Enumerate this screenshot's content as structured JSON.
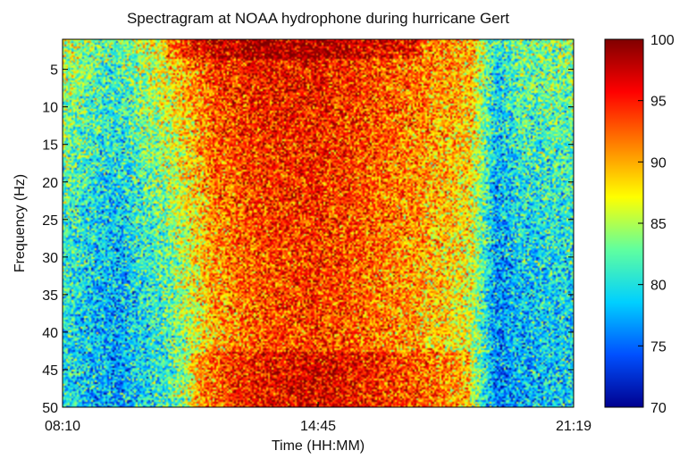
{
  "chart_data": {
    "type": "heatmap",
    "title": "Spectragram at NOAA hydrophone during hurricane Gert",
    "xlabel": "Time (HH:MM)",
    "ylabel": "Frequency (Hz)",
    "x_tick_labels": [
      "08:10",
      "14:45",
      "21:19"
    ],
    "x_tick_positions": [
      0,
      0.5,
      1
    ],
    "y_ticks": [
      5,
      10,
      15,
      20,
      25,
      30,
      35,
      40,
      45,
      50
    ],
    "ylim": [
      1,
      50
    ],
    "y_reversed": true,
    "colorbar": {
      "ticks": [
        70,
        75,
        80,
        85,
        90,
        95,
        100
      ],
      "range": [
        70,
        100
      ],
      "colormap": "jet",
      "colors": [
        "#00008f",
        "#0050ff",
        "#00d0ff",
        "#60ff9f",
        "#ffff00",
        "#ff8000",
        "#ff0000",
        "#800000"
      ]
    },
    "legend": "colorbar-right",
    "intensity_profile": {
      "description_free_values": true,
      "time_fraction": [
        0.0,
        0.1,
        0.2,
        0.3,
        0.4,
        0.5,
        0.6,
        0.7,
        0.8,
        0.85,
        0.9,
        1.0
      ],
      "level_low_freq": [
        86,
        82,
        88,
        95,
        96,
        96,
        94,
        92,
        90,
        80,
        84,
        84
      ],
      "level_high_freq": [
        80,
        77,
        81,
        90,
        93,
        94,
        92,
        90,
        86,
        76,
        78,
        79
      ]
    }
  }
}
